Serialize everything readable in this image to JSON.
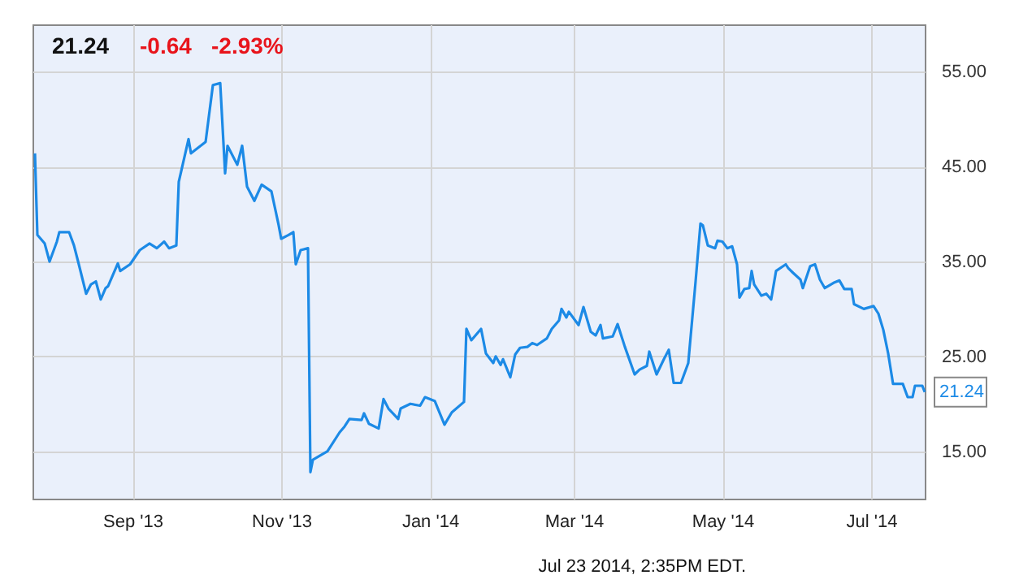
{
  "chart_data": {
    "type": "line",
    "x": [
      "2013-07-23",
      "2013-07-24",
      "2013-07-27",
      "2013-07-29",
      "2013-08-01",
      "2013-08-02",
      "2013-08-06",
      "2013-08-08",
      "2013-08-10",
      "2013-08-13",
      "2013-08-15",
      "2013-08-17",
      "2013-08-19",
      "2013-08-21",
      "2013-08-22",
      "2013-08-26",
      "2013-08-27",
      "2013-08-31",
      "2013-09-04",
      "2013-09-08",
      "2013-09-11",
      "2013-09-14",
      "2013-09-16",
      "2013-09-19",
      "2013-09-20",
      "2013-09-24",
      "2013-09-25",
      "2013-10-01",
      "2013-10-04",
      "2013-10-07",
      "2013-10-09",
      "2013-10-10",
      "2013-10-14",
      "2013-10-16",
      "2013-10-18",
      "2013-10-21",
      "2013-10-24",
      "2013-10-28",
      "2013-10-31",
      "2013-11-01",
      "2013-11-04",
      "2013-11-06",
      "2013-11-07",
      "2013-11-09",
      "2013-11-12",
      "2013-11-13",
      "2013-11-14",
      "2013-11-20",
      "2013-11-25",
      "2013-11-27",
      "2013-11-29",
      "2013-12-04",
      "2013-12-05",
      "2013-12-07",
      "2013-12-11",
      "2013-12-13",
      "2013-12-15",
      "2013-12-19",
      "2013-12-20",
      "2013-12-24",
      "2013-12-28",
      "2013-12-30",
      "2014-01-03",
      "2014-01-07",
      "2014-01-10",
      "2014-01-15",
      "2014-01-16",
      "2014-01-18",
      "2014-01-22",
      "2014-01-24",
      "2014-01-27",
      "2014-01-28",
      "2014-01-30",
      "2014-01-31",
      "2014-02-03",
      "2014-02-05",
      "2014-02-07",
      "2014-02-10",
      "2014-02-12",
      "2014-02-14",
      "2014-02-18",
      "2014-02-20",
      "2014-02-23",
      "2014-02-24",
      "2014-02-26",
      "2014-02-27",
      "2014-03-03",
      "2014-03-05",
      "2014-03-08",
      "2014-03-10",
      "2014-03-12",
      "2014-03-13",
      "2014-03-17",
      "2014-03-19",
      "2014-03-22",
      "2014-03-26",
      "2014-03-28",
      "2014-03-31",
      "2014-04-01",
      "2014-04-04",
      "2014-04-07",
      "2014-04-09",
      "2014-04-11",
      "2014-04-14",
      "2014-04-17",
      "2014-04-20",
      "2014-04-22",
      "2014-04-23",
      "2014-04-25",
      "2014-04-28",
      "2014-04-29",
      "2014-05-01",
      "2014-05-03",
      "2014-05-05",
      "2014-05-07",
      "2014-05-08",
      "2014-05-10",
      "2014-05-12",
      "2014-05-13",
      "2014-05-14",
      "2014-05-17",
      "2014-05-19",
      "2014-05-21",
      "2014-05-23",
      "2014-05-27",
      "2014-05-28",
      "2014-05-30",
      "2014-06-02",
      "2014-06-03",
      "2014-06-06",
      "2014-06-08",
      "2014-06-10",
      "2014-06-12",
      "2014-06-16",
      "2014-06-18",
      "2014-06-20",
      "2014-06-23",
      "2014-06-24",
      "2014-06-28",
      "2014-07-02",
      "2014-07-04",
      "2014-07-06",
      "2014-07-08",
      "2014-07-10",
      "2014-07-14",
      "2014-07-16",
      "2014-07-18",
      "2014-07-19",
      "2014-07-22",
      "2014-07-23"
    ],
    "series": [
      {
        "color": "#1c8ae6",
        "values": [
          46.4,
          37.8,
          36.9,
          35.0,
          37.1,
          38.1,
          38.1,
          36.7,
          34.7,
          31.6,
          32.6,
          32.9,
          31.0,
          32.2,
          32.4,
          34.8,
          34.0,
          34.7,
          36.2,
          36.9,
          36.4,
          37.1,
          36.4,
          36.7,
          43.4,
          47.9,
          46.4,
          47.6,
          53.6,
          53.8,
          44.3,
          47.2,
          45.2,
          47.2,
          42.9,
          41.4,
          43.1,
          42.4,
          38.8,
          37.4,
          37.8,
          38.1,
          34.7,
          36.2,
          36.4,
          12.8,
          14.1,
          15.0,
          17.0,
          17.6,
          18.4,
          18.3,
          19.0,
          17.9,
          17.4,
          20.5,
          19.5,
          18.4,
          19.5,
          20.0,
          19.8,
          20.7,
          20.3,
          17.8,
          19.1,
          20.2,
          27.9,
          26.7,
          27.9,
          25.3,
          24.3,
          25.0,
          24.1,
          24.7,
          22.8,
          25.2,
          25.9,
          26.0,
          26.4,
          26.2,
          26.9,
          27.9,
          28.8,
          30.0,
          29.1,
          29.7,
          28.3,
          30.2,
          27.6,
          27.2,
          28.3,
          26.9,
          27.1,
          28.4,
          26.0,
          23.1,
          23.6,
          24.0,
          25.5,
          23.1,
          24.7,
          25.7,
          22.2,
          22.2,
          24.3,
          32.9,
          39.0,
          38.8,
          36.7,
          36.4,
          37.2,
          37.1,
          36.4,
          36.6,
          34.7,
          31.2,
          32.1,
          32.2,
          34.0,
          32.6,
          31.4,
          31.6,
          31.0,
          34.0,
          34.7,
          34.3,
          33.8,
          33.1,
          32.2,
          34.5,
          34.7,
          33.1,
          32.2,
          32.8,
          33.0,
          32.1,
          32.1,
          30.5,
          30.0,
          30.3,
          29.5,
          27.8,
          25.3,
          22.1,
          22.1,
          20.7,
          20.7,
          21.9,
          21.9,
          21.24
        ]
      }
    ],
    "xlim": [
      "2013-07-22",
      "2014-07-23"
    ],
    "xticks": [
      {
        "value": "2013-09-01",
        "label": "Sep '13"
      },
      {
        "value": "2013-11-01",
        "label": "Nov '13"
      },
      {
        "value": "2014-01-01",
        "label": "Jan '14"
      },
      {
        "value": "2014-03-01",
        "label": "Mar '14"
      },
      {
        "value": "2014-05-01",
        "label": "May '14"
      },
      {
        "value": "2014-07-01",
        "label": "Jul '14"
      }
    ],
    "ylim": [
      10,
      60
    ],
    "yticks": [
      {
        "value": 15,
        "label": "15.00"
      },
      {
        "value": 25,
        "label": "25.00"
      },
      {
        "value": 35,
        "label": "35.00"
      },
      {
        "value": 45,
        "label": "45.00"
      },
      {
        "value": 55,
        "label": "55.00"
      }
    ],
    "grid": true,
    "annotations": [
      "21.24",
      "-0.64",
      "-2.93%",
      "Jul 23 2014, 2:35PM EDT.",
      {
        "text": "21.24",
        "x": "2014-07-23",
        "y": 21.24
      }
    ]
  }
}
